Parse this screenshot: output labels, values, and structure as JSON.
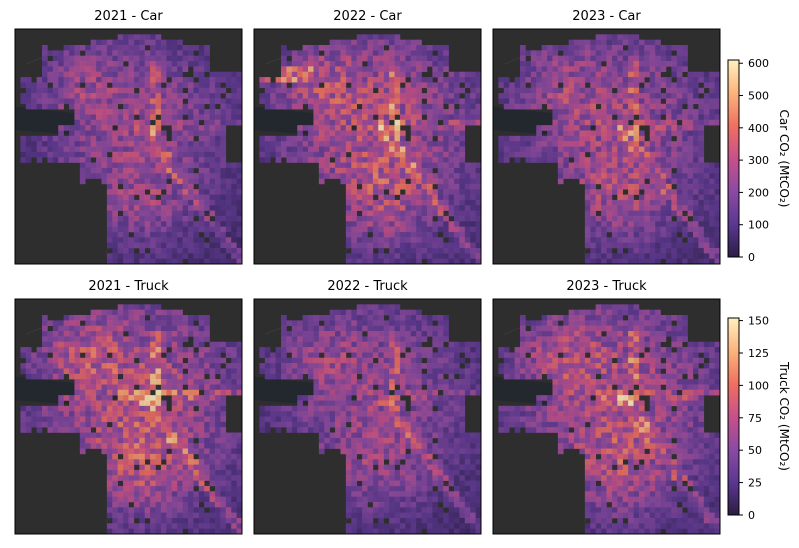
{
  "chart_data": {
    "type": "heatmap",
    "panels": [
      {
        "row": 0,
        "col": 0,
        "title": "2021 - Car",
        "variable": "car",
        "year": 2021,
        "intensity": 0.3
      },
      {
        "row": 0,
        "col": 1,
        "title": "2022 - Car",
        "variable": "car",
        "year": 2022,
        "intensity": 0.5
      },
      {
        "row": 0,
        "col": 2,
        "title": "2023 - Car",
        "variable": "car",
        "year": 2023,
        "intensity": 0.38
      },
      {
        "row": 1,
        "col": 0,
        "title": "2021 - Truck",
        "variable": "truck",
        "year": 2021,
        "intensity": 0.55
      },
      {
        "row": 1,
        "col": 1,
        "title": "2022 - Truck",
        "variable": "truck",
        "year": 2022,
        "intensity": 0.3
      },
      {
        "row": 1,
        "col": 2,
        "title": "2023 - Truck",
        "variable": "truck",
        "year": 2023,
        "intensity": 0.5
      }
    ],
    "colorbars": [
      {
        "variable": "car",
        "label": "Car CO₂ (MtCO₂)",
        "min": 0,
        "max": 610,
        "ticks": [
          0,
          100,
          200,
          300,
          400,
          500,
          600
        ]
      },
      {
        "variable": "truck",
        "label": "Truck CO₂ (MtCO₂)",
        "min": 0,
        "max": 152,
        "ticks": [
          0,
          25,
          50,
          75,
          100,
          125,
          150
        ]
      }
    ],
    "colormap": "magma",
    "colormap_stops": [
      "#2b1d44",
      "#5b3791",
      "#8c4aa3",
      "#c7508b",
      "#f07060",
      "#fbb47c",
      "#fff0c0"
    ],
    "basemap_color": "#2e2e2e",
    "water_color": "#23282e",
    "grid": false
  }
}
